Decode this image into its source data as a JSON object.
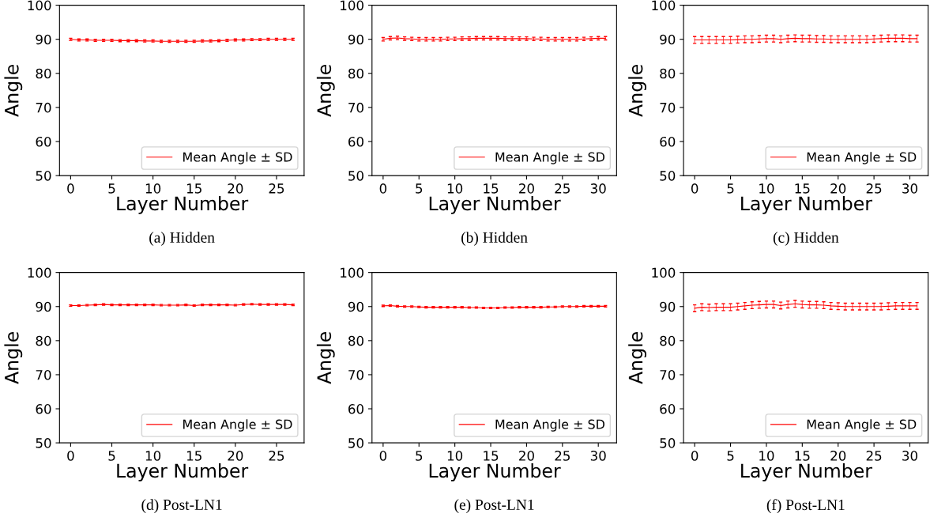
{
  "chart_data": [
    {
      "type": "line",
      "xlabel": "Layer Number",
      "ylabel": "Angle",
      "annotations": [
        "(a) Hidden"
      ],
      "x": [
        0,
        1,
        2,
        3,
        4,
        5,
        6,
        7,
        8,
        9,
        10,
        11,
        12,
        13,
        14,
        15,
        16,
        17,
        18,
        19,
        20,
        21,
        22,
        23,
        24,
        25,
        26,
        27
      ],
      "xlim": [
        -1.35,
        28.35
      ],
      "ylim": [
        50,
        100
      ],
      "xticks": [
        0,
        5,
        10,
        15,
        20,
        25
      ],
      "yticks": [
        50,
        60,
        70,
        80,
        90,
        100
      ],
      "grid": false,
      "legend": "bottom right",
      "marker": "none",
      "line_style": "solid",
      "series": [
        {
          "name": "Mean Angle ± SD",
          "color": "#ff0000",
          "values": [
            90,
            89.8,
            89.8,
            89.7,
            89.7,
            89.7,
            89.6,
            89.6,
            89.6,
            89.5,
            89.5,
            89.4,
            89.4,
            89.4,
            89.4,
            89.4,
            89.5,
            89.5,
            89.6,
            89.7,
            89.8,
            89.8,
            89.9,
            89.9,
            90,
            90,
            90,
            90
          ],
          "errors": [
            0.3,
            0.3,
            0.3,
            0.3,
            0.3,
            0.3,
            0.3,
            0.3,
            0.3,
            0.3,
            0.3,
            0.3,
            0.3,
            0.3,
            0.3,
            0.3,
            0.3,
            0.3,
            0.3,
            0.3,
            0.3,
            0.3,
            0.3,
            0.3,
            0.3,
            0.3,
            0.3,
            0.3
          ]
        }
      ]
    },
    {
      "type": "line",
      "xlabel": "Layer Number",
      "ylabel": "Angle",
      "annotations": [
        "(b) Hidden"
      ],
      "x": [
        0,
        1,
        2,
        3,
        4,
        5,
        6,
        7,
        8,
        9,
        10,
        11,
        12,
        13,
        14,
        15,
        16,
        17,
        18,
        19,
        20,
        21,
        22,
        23,
        24,
        25,
        26,
        27,
        28,
        29,
        30,
        31
      ],
      "xlim": [
        -1.55,
        32.55
      ],
      "ylim": [
        50,
        100
      ],
      "xticks": [
        0,
        5,
        10,
        15,
        20,
        25,
        30
      ],
      "yticks": [
        50,
        60,
        70,
        80,
        90,
        100
      ],
      "grid": false,
      "legend": "bottom right",
      "marker": "none",
      "line_style": "solid",
      "series": [
        {
          "name": "Mean Angle ± SD",
          "color": "#ff0000",
          "values": [
            90,
            90.3,
            90.4,
            90.2,
            90.1,
            90,
            90,
            90,
            90,
            90.1,
            90.1,
            90.2,
            90.2,
            90.3,
            90.3,
            90.3,
            90.3,
            90.2,
            90.2,
            90.2,
            90.2,
            90.1,
            90.1,
            90,
            90,
            90,
            90,
            90,
            90.1,
            90.2,
            90.3,
            90.3
          ],
          "errors": [
            0.5,
            0.5,
            0.5,
            0.5,
            0.5,
            0.5,
            0.5,
            0.5,
            0.5,
            0.5,
            0.5,
            0.5,
            0.5,
            0.5,
            0.5,
            0.5,
            0.5,
            0.5,
            0.5,
            0.5,
            0.5,
            0.5,
            0.5,
            0.5,
            0.5,
            0.5,
            0.5,
            0.5,
            0.5,
            0.5,
            0.5,
            0.5
          ]
        }
      ]
    },
    {
      "type": "line",
      "xlabel": "Layer Number",
      "ylabel": "Angle",
      "annotations": [
        "(c) Hidden"
      ],
      "x": [
        0,
        1,
        2,
        3,
        4,
        5,
        6,
        7,
        8,
        9,
        10,
        11,
        12,
        13,
        14,
        15,
        16,
        17,
        18,
        19,
        20,
        21,
        22,
        23,
        24,
        25,
        26,
        27,
        28,
        29,
        30,
        31
      ],
      "xlim": [
        -1.55,
        32.55
      ],
      "ylim": [
        50,
        100
      ],
      "xticks": [
        0,
        5,
        10,
        15,
        20,
        25,
        30
      ],
      "yticks": [
        50,
        60,
        70,
        80,
        90,
        100
      ],
      "grid": false,
      "legend": "bottom right",
      "marker": "none",
      "line_style": "solid",
      "series": [
        {
          "name": "Mean Angle ± SD",
          "color": "#ff0000",
          "values": [
            89.8,
            89.8,
            89.8,
            89.8,
            89.8,
            89.8,
            89.9,
            90,
            90,
            90.1,
            90.2,
            90.2,
            90,
            90.2,
            90.3,
            90.2,
            90.2,
            90.1,
            90.1,
            90,
            90,
            90,
            90,
            90,
            90,
            90.1,
            90.2,
            90.3,
            90.3,
            90.3,
            90.2,
            90.2
          ],
          "errors": [
            1,
            1,
            1,
            1,
            1,
            1,
            1,
            1,
            1,
            1,
            1,
            1,
            1,
            1,
            1,
            1,
            1,
            1,
            1,
            1,
            1,
            1,
            1,
            1,
            1,
            1,
            1,
            1,
            1,
            1,
            1,
            1
          ]
        }
      ]
    },
    {
      "type": "line",
      "xlabel": "Layer Number",
      "ylabel": "Angle",
      "annotations": [
        "(d) Post-LN1"
      ],
      "x": [
        0,
        1,
        2,
        3,
        4,
        5,
        6,
        7,
        8,
        9,
        10,
        11,
        12,
        13,
        14,
        15,
        16,
        17,
        18,
        19,
        20,
        21,
        22,
        23,
        24,
        25,
        26,
        27
      ],
      "xlim": [
        -1.35,
        28.35
      ],
      "ylim": [
        50,
        100
      ],
      "xticks": [
        0,
        5,
        10,
        15,
        20,
        25
      ],
      "yticks": [
        50,
        60,
        70,
        80,
        90,
        100
      ],
      "grid": false,
      "legend": "bottom right",
      "marker": "none",
      "line_style": "solid",
      "series": [
        {
          "name": "Mean Angle ± SD",
          "color": "#ff0000",
          "values": [
            90.3,
            90.3,
            90.4,
            90.5,
            90.6,
            90.5,
            90.5,
            90.5,
            90.5,
            90.5,
            90.5,
            90.4,
            90.4,
            90.4,
            90.5,
            90.3,
            90.5,
            90.5,
            90.5,
            90.5,
            90.4,
            90.6,
            90.7,
            90.6,
            90.6,
            90.6,
            90.6,
            90.5
          ],
          "errors": [
            0.2,
            0.2,
            0.2,
            0.2,
            0.2,
            0.2,
            0.2,
            0.2,
            0.2,
            0.2,
            0.2,
            0.2,
            0.2,
            0.2,
            0.2,
            0.2,
            0.2,
            0.2,
            0.2,
            0.2,
            0.2,
            0.2,
            0.2,
            0.2,
            0.2,
            0.2,
            0.2,
            0.2
          ]
        }
      ]
    },
    {
      "type": "line",
      "xlabel": "Layer Number",
      "ylabel": "Angle",
      "annotations": [
        "(e) Post-LN1"
      ],
      "x": [
        0,
        1,
        2,
        3,
        4,
        5,
        6,
        7,
        8,
        9,
        10,
        11,
        12,
        13,
        14,
        15,
        16,
        17,
        18,
        19,
        20,
        21,
        22,
        23,
        24,
        25,
        26,
        27,
        28,
        29,
        30,
        31
      ],
      "xlim": [
        -1.55,
        32.55
      ],
      "ylim": [
        50,
        100
      ],
      "xticks": [
        0,
        5,
        10,
        15,
        20,
        25,
        30
      ],
      "yticks": [
        50,
        60,
        70,
        80,
        90,
        100
      ],
      "grid": false,
      "legend": "bottom right",
      "marker": "none",
      "line_style": "solid",
      "series": [
        {
          "name": "Mean Angle ± SD",
          "color": "#ff0000",
          "values": [
            90.2,
            90.3,
            90.1,
            90,
            90,
            89.9,
            89.8,
            89.8,
            89.8,
            89.8,
            89.8,
            89.8,
            89.7,
            89.7,
            89.6,
            89.6,
            89.6,
            89.7,
            89.7,
            89.8,
            89.8,
            89.8,
            89.8,
            89.9,
            89.9,
            90,
            90,
            90,
            90.1,
            90.1,
            90.1,
            90.1
          ],
          "errors": [
            0.2,
            0.2,
            0.2,
            0.2,
            0.2,
            0.2,
            0.2,
            0.2,
            0.2,
            0.2,
            0.2,
            0.2,
            0.2,
            0.2,
            0.2,
            0.2,
            0.2,
            0.2,
            0.2,
            0.2,
            0.2,
            0.2,
            0.2,
            0.2,
            0.2,
            0.2,
            0.2,
            0.2,
            0.2,
            0.2,
            0.2,
            0.2
          ]
        }
      ]
    },
    {
      "type": "line",
      "xlabel": "Layer Number",
      "ylabel": "Angle",
      "annotations": [
        "(f) Post-LN1"
      ],
      "x": [
        0,
        1,
        2,
        3,
        4,
        5,
        6,
        7,
        8,
        9,
        10,
        11,
        12,
        13,
        14,
        15,
        16,
        17,
        18,
        19,
        20,
        21,
        22,
        23,
        24,
        25,
        26,
        27,
        28,
        29,
        30,
        31
      ],
      "xlim": [
        -1.55,
        32.55
      ],
      "ylim": [
        50,
        100
      ],
      "xticks": [
        0,
        5,
        10,
        15,
        20,
        25,
        30
      ],
      "yticks": [
        50,
        60,
        70,
        80,
        90,
        100
      ],
      "grid": false,
      "legend": "bottom right",
      "marker": "none",
      "line_style": "solid",
      "series": [
        {
          "name": "Mean Angle ± SD",
          "color": "#ff0000",
          "values": [
            89.5,
            89.8,
            89.7,
            89.8,
            89.8,
            89.8,
            90,
            90.2,
            90.4,
            90.5,
            90.6,
            90.6,
            90.3,
            90.6,
            90.8,
            90.6,
            90.5,
            90.5,
            90.4,
            90.2,
            90.1,
            90,
            90,
            90,
            90,
            90,
            90,
            90.1,
            90.2,
            90.2,
            90.2,
            90.2
          ],
          "errors": [
            1,
            1,
            1,
            1,
            1,
            1,
            1,
            1,
            1,
            1,
            1,
            1,
            1,
            1,
            1,
            1,
            1,
            1,
            1,
            1,
            1,
            1,
            1,
            1,
            1,
            1,
            1,
            1,
            1,
            1,
            1,
            1
          ]
        }
      ]
    }
  ]
}
